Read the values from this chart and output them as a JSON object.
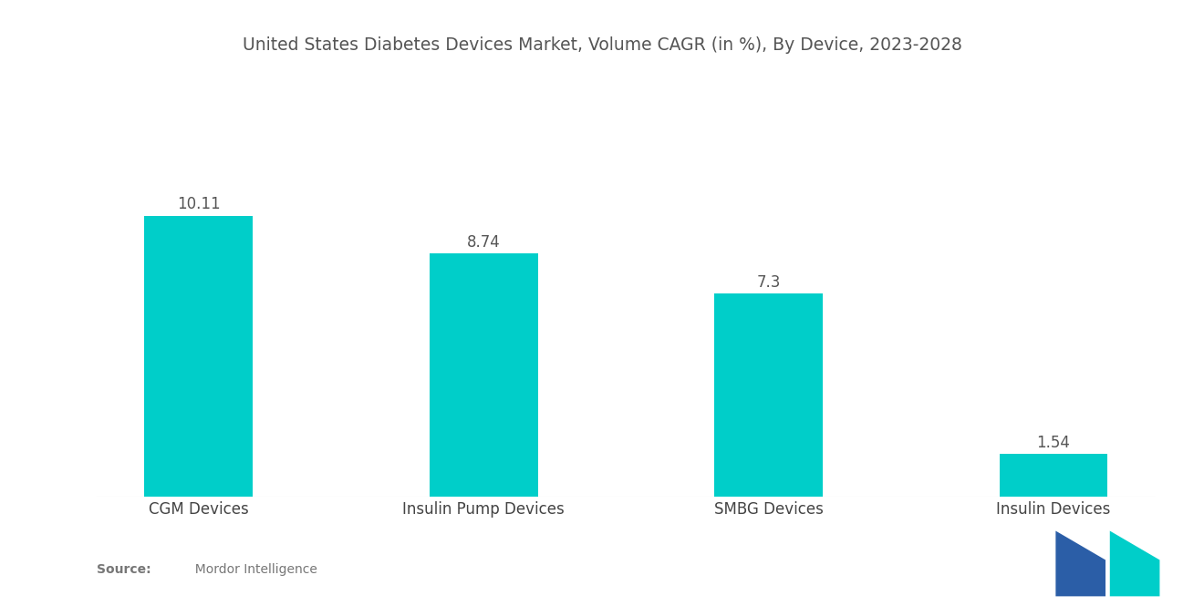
{
  "title": "United States Diabetes Devices Market, Volume CAGR (in %), By Device, 2023-2028",
  "categories": [
    "CGM Devices",
    "Insulin Pump Devices",
    "SMBG Devices",
    "Insulin Devices"
  ],
  "values": [
    10.11,
    8.74,
    7.3,
    1.54
  ],
  "bar_color": "#00CEC9",
  "background_color": "#ffffff",
  "title_fontsize": 13.5,
  "label_fontsize": 12,
  "value_fontsize": 12,
  "ylim": [
    0,
    13.5
  ],
  "bar_width": 0.38,
  "title_color": "#555555",
  "label_color": "#444444",
  "value_color": "#555555",
  "source_color": "#777777",
  "logo_dark_blue": "#2B5EA7",
  "logo_teal": "#00CEC9"
}
